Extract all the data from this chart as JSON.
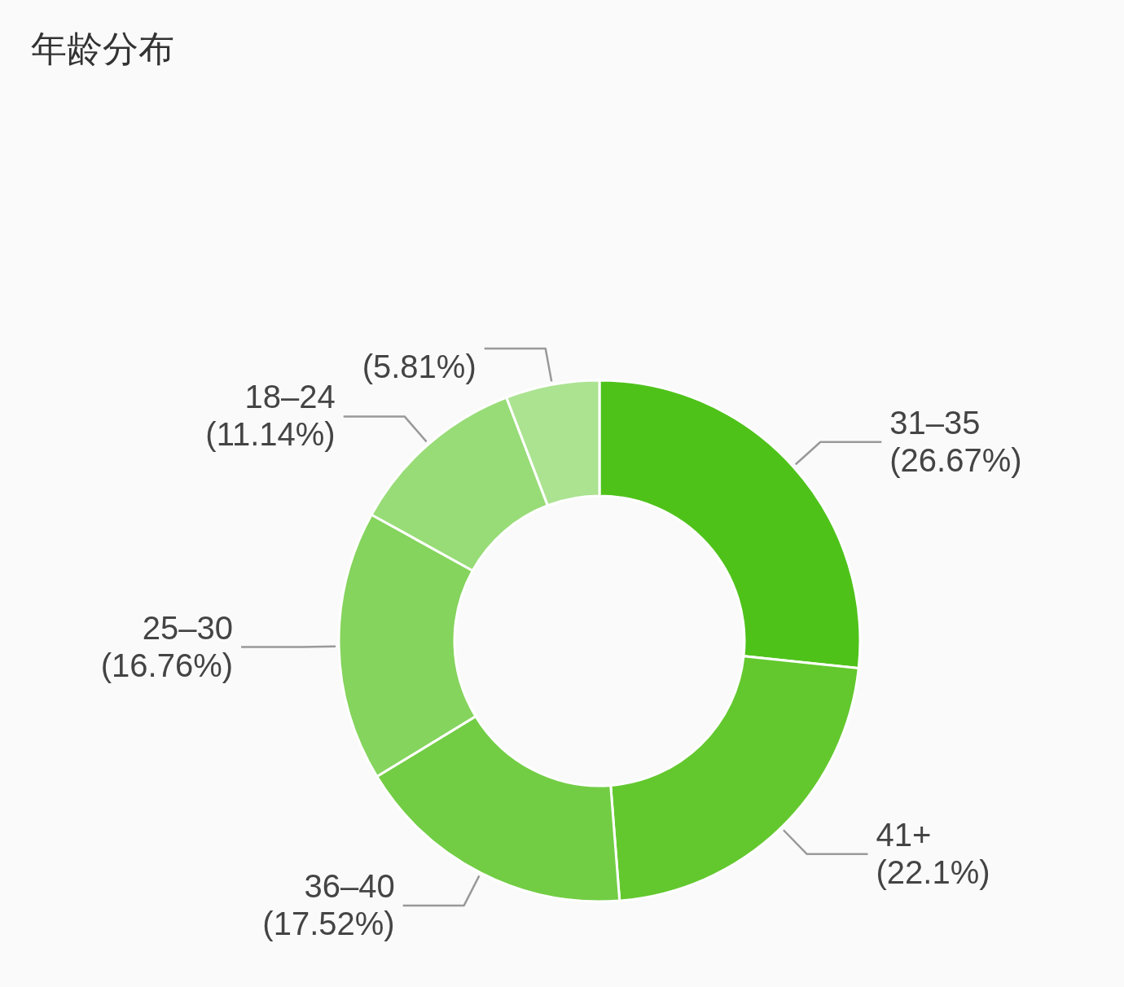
{
  "chart_data": {
    "type": "donut",
    "title": "年龄分布",
    "categories": [
      "31–35",
      "41+",
      "36–40",
      "25–30",
      "18–24",
      null
    ],
    "values": [
      26.67,
      22.1,
      17.52,
      16.76,
      11.14,
      5.81
    ],
    "value_labels": [
      "(26.67%)",
      "(22.1%)",
      "(17.52%)",
      "(16.76%)",
      "(11.14%)",
      "(5.81%)"
    ],
    "colors": [
      "#4fc21a",
      "#63c82e",
      "#72cd44",
      "#85d45d",
      "#98dc77",
      "#abe391"
    ]
  }
}
